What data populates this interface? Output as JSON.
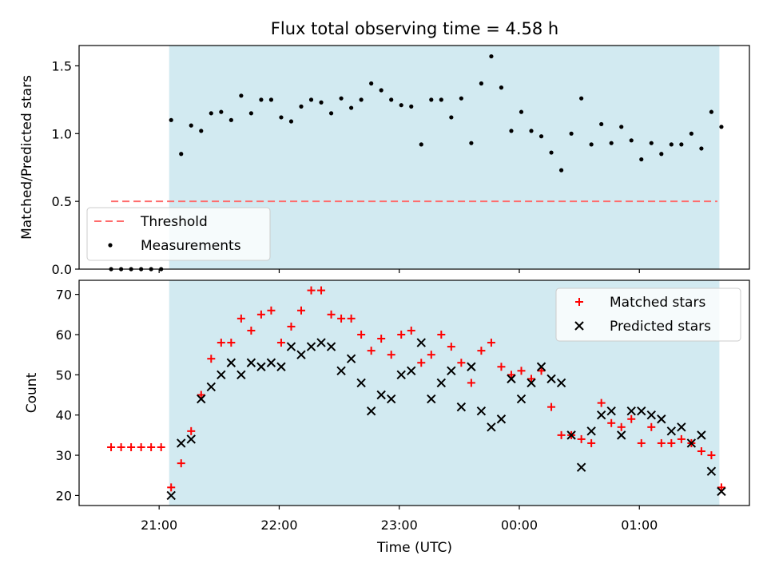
{
  "figure": {
    "title": "Flux total observing time = 4.58 h",
    "xlabel": "Time (UTC)"
  },
  "chart_data": [
    {
      "type": "scatter",
      "ylabel": "Matched/Predicted stars",
      "ylim": [
        0,
        1.65
      ],
      "xlim": [
        "20:20",
        "01:55"
      ],
      "yticks": [
        "0.0",
        "0.5",
        "1.0",
        "1.5"
      ],
      "shaded_interval": [
        "21:05",
        "01:40"
      ],
      "shade_color": "#add8e6",
      "legend_position": "lower-left",
      "series": [
        {
          "name": "Threshold",
          "style": "dashed-line",
          "color": "#ff6b6b",
          "points": [
            [
              "20:36",
              0.5
            ],
            [
              "01:39",
              0.5
            ]
          ]
        },
        {
          "name": "Measurements",
          "style": "dots",
          "color": "#000000",
          "points": [
            [
              "20:36",
              0.0
            ],
            [
              "20:41",
              0.0
            ],
            [
              "20:46",
              0.0
            ],
            [
              "20:51",
              0.0
            ],
            [
              "20:56",
              0.0
            ],
            [
              "21:01",
              0.0
            ],
            [
              "21:06",
              1.1
            ],
            [
              "21:11",
              0.85
            ],
            [
              "21:16",
              1.06
            ],
            [
              "21:21",
              1.02
            ],
            [
              "21:26",
              1.15
            ],
            [
              "21:31",
              1.16
            ],
            [
              "21:36",
              1.1
            ],
            [
              "21:41",
              1.28
            ],
            [
              "21:46",
              1.15
            ],
            [
              "21:51",
              1.25
            ],
            [
              "21:56",
              1.25
            ],
            [
              "22:01",
              1.12
            ],
            [
              "22:06",
              1.09
            ],
            [
              "22:11",
              1.2
            ],
            [
              "22:16",
              1.25
            ],
            [
              "22:21",
              1.23
            ],
            [
              "22:26",
              1.15
            ],
            [
              "22:31",
              1.26
            ],
            [
              "22:36",
              1.19
            ],
            [
              "22:41",
              1.25
            ],
            [
              "22:46",
              1.37
            ],
            [
              "22:51",
              1.32
            ],
            [
              "22:56",
              1.25
            ],
            [
              "23:01",
              1.21
            ],
            [
              "23:06",
              1.2
            ],
            [
              "23:11",
              0.92
            ],
            [
              "23:16",
              1.25
            ],
            [
              "23:21",
              1.25
            ],
            [
              "23:26",
              1.12
            ],
            [
              "23:31",
              1.26
            ],
            [
              "23:36",
              0.93
            ],
            [
              "23:41",
              1.37
            ],
            [
              "23:46",
              1.57
            ],
            [
              "23:51",
              1.34
            ],
            [
              "23:56",
              1.02
            ],
            [
              "00:01",
              1.16
            ],
            [
              "00:06",
              1.02
            ],
            [
              "00:11",
              0.98
            ],
            [
              "00:16",
              0.86
            ],
            [
              "00:21",
              0.73
            ],
            [
              "00:26",
              1.0
            ],
            [
              "00:31",
              1.26
            ],
            [
              "00:36",
              0.92
            ],
            [
              "00:41",
              1.07
            ],
            [
              "00:46",
              0.93
            ],
            [
              "00:51",
              1.05
            ],
            [
              "00:56",
              0.95
            ],
            [
              "01:01",
              0.81
            ],
            [
              "01:06",
              0.93
            ],
            [
              "01:11",
              0.85
            ],
            [
              "01:16",
              0.92
            ],
            [
              "01:21",
              0.92
            ],
            [
              "01:26",
              1.0
            ],
            [
              "01:31",
              0.89
            ],
            [
              "01:36",
              1.16
            ],
            [
              "01:41",
              1.05
            ]
          ]
        }
      ]
    },
    {
      "type": "scatter",
      "ylabel": "Count",
      "ylim": [
        17.5,
        73.5
      ],
      "xlim": [
        "20:20",
        "01:55"
      ],
      "yticks": [
        "20",
        "30",
        "40",
        "50",
        "60",
        "70"
      ],
      "xticks": [
        "21:00",
        "22:00",
        "23:00",
        "00:00",
        "01:00"
      ],
      "shaded_interval": [
        "21:05",
        "01:40"
      ],
      "shade_color": "#add8e6",
      "legend_position": "top-right",
      "series": [
        {
          "name": "Matched stars",
          "marker": "plus",
          "color": "#ff0000",
          "points": [
            [
              "20:36",
              32
            ],
            [
              "20:41",
              32
            ],
            [
              "20:46",
              32
            ],
            [
              "20:51",
              32
            ],
            [
              "20:56",
              32
            ],
            [
              "21:01",
              32
            ],
            [
              "21:06",
              22
            ],
            [
              "21:11",
              28
            ],
            [
              "21:16",
              36
            ],
            [
              "21:21",
              45
            ],
            [
              "21:26",
              54
            ],
            [
              "21:31",
              58
            ],
            [
              "21:36",
              58
            ],
            [
              "21:41",
              64
            ],
            [
              "21:46",
              61
            ],
            [
              "21:51",
              65
            ],
            [
              "21:56",
              66
            ],
            [
              "22:01",
              58
            ],
            [
              "22:06",
              62
            ],
            [
              "22:11",
              66
            ],
            [
              "22:16",
              71
            ],
            [
              "22:21",
              71
            ],
            [
              "22:26",
              65
            ],
            [
              "22:31",
              64
            ],
            [
              "22:36",
              64
            ],
            [
              "22:41",
              60
            ],
            [
              "22:46",
              56
            ],
            [
              "22:51",
              59
            ],
            [
              "22:56",
              55
            ],
            [
              "23:01",
              60
            ],
            [
              "23:06",
              61
            ],
            [
              "23:11",
              53
            ],
            [
              "23:16",
              55
            ],
            [
              "23:21",
              60
            ],
            [
              "23:26",
              57
            ],
            [
              "23:31",
              53
            ],
            [
              "23:36",
              48
            ],
            [
              "23:41",
              56
            ],
            [
              "23:46",
              58
            ],
            [
              "23:51",
              52
            ],
            [
              "23:56",
              50
            ],
            [
              "00:01",
              51
            ],
            [
              "00:06",
              49
            ],
            [
              "00:11",
              51
            ],
            [
              "00:16",
              42
            ],
            [
              "00:21",
              35
            ],
            [
              "00:26",
              35
            ],
            [
              "00:31",
              34
            ],
            [
              "00:36",
              33
            ],
            [
              "00:41",
              43
            ],
            [
              "00:46",
              38
            ],
            [
              "00:51",
              37
            ],
            [
              "00:56",
              39
            ],
            [
              "01:01",
              33
            ],
            [
              "01:06",
              37
            ],
            [
              "01:11",
              33
            ],
            [
              "01:16",
              33
            ],
            [
              "01:21",
              34
            ],
            [
              "01:26",
              33
            ],
            [
              "01:31",
              31
            ],
            [
              "01:36",
              30
            ],
            [
              "01:41",
              22
            ]
          ]
        },
        {
          "name": "Predicted stars",
          "marker": "x",
          "color": "#000000",
          "points": [
            [
              "21:06",
              20
            ],
            [
              "21:11",
              33
            ],
            [
              "21:16",
              34
            ],
            [
              "21:21",
              44
            ],
            [
              "21:26",
              47
            ],
            [
              "21:31",
              50
            ],
            [
              "21:36",
              53
            ],
            [
              "21:41",
              50
            ],
            [
              "21:46",
              53
            ],
            [
              "21:51",
              52
            ],
            [
              "21:56",
              53
            ],
            [
              "22:01",
              52
            ],
            [
              "22:06",
              57
            ],
            [
              "22:11",
              55
            ],
            [
              "22:16",
              57
            ],
            [
              "22:21",
              58
            ],
            [
              "22:26",
              57
            ],
            [
              "22:31",
              51
            ],
            [
              "22:36",
              54
            ],
            [
              "22:41",
              48
            ],
            [
              "22:46",
              41
            ],
            [
              "22:51",
              45
            ],
            [
              "22:56",
              44
            ],
            [
              "23:01",
              50
            ],
            [
              "23:06",
              51
            ],
            [
              "23:11",
              58
            ],
            [
              "23:16",
              44
            ],
            [
              "23:21",
              48
            ],
            [
              "23:26",
              51
            ],
            [
              "23:31",
              42
            ],
            [
              "23:36",
              52
            ],
            [
              "23:41",
              41
            ],
            [
              "23:46",
              37
            ],
            [
              "23:51",
              39
            ],
            [
              "23:56",
              49
            ],
            [
              "00:01",
              44
            ],
            [
              "00:06",
              48
            ],
            [
              "00:11",
              52
            ],
            [
              "00:16",
              49
            ],
            [
              "00:21",
              48
            ],
            [
              "00:26",
              35
            ],
            [
              "00:31",
              27
            ],
            [
              "00:36",
              36
            ],
            [
              "00:41",
              40
            ],
            [
              "00:46",
              41
            ],
            [
              "00:51",
              35
            ],
            [
              "00:56",
              41
            ],
            [
              "01:01",
              41
            ],
            [
              "01:06",
              40
            ],
            [
              "01:11",
              39
            ],
            [
              "01:16",
              36
            ],
            [
              "01:21",
              37
            ],
            [
              "01:26",
              33
            ],
            [
              "01:31",
              35
            ],
            [
              "01:36",
              26
            ],
            [
              "01:41",
              21
            ]
          ]
        }
      ]
    }
  ]
}
